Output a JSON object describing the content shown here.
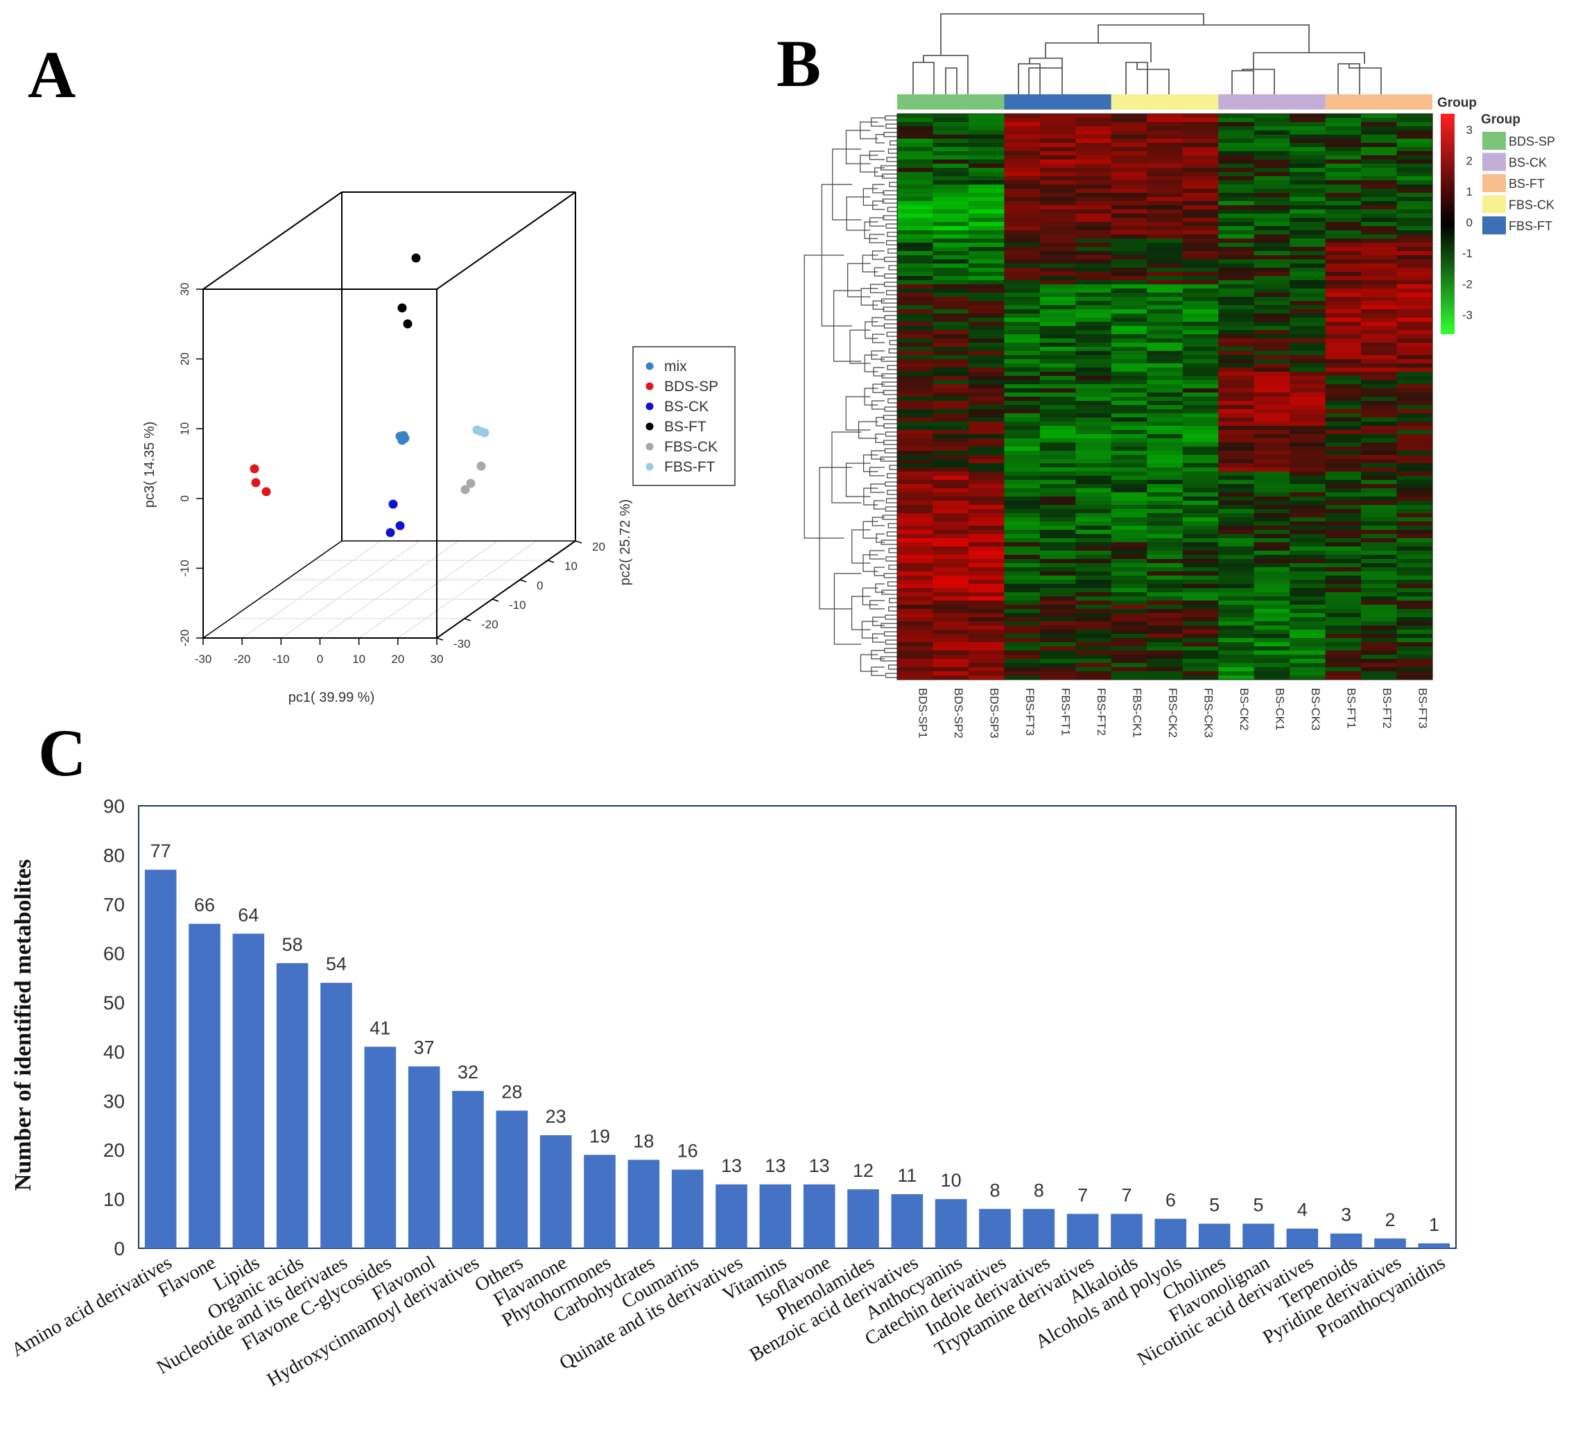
{
  "panels": {
    "a": "A",
    "b": "B",
    "c": "C"
  },
  "chart_data": [
    {
      "id": "pca3d",
      "type": "scatter",
      "title": "",
      "axes": {
        "x": {
          "label": "pc1( 39.99 %)",
          "ticks": [
            "-30",
            "-20",
            "-10",
            "0",
            "10",
            "20",
            "30"
          ],
          "range": [
            -30,
            30
          ]
        },
        "y": {
          "label": "pc2( 25.72 %)",
          "ticks": [
            "-30",
            "-20",
            "-10",
            "0",
            "10",
            "20"
          ],
          "range": [
            -30,
            20
          ]
        },
        "z": {
          "label": "pc3( 14.35 %)",
          "ticks": [
            "-20",
            "-10",
            "0",
            "10",
            "20",
            "30"
          ],
          "range": [
            -20,
            30
          ]
        }
      },
      "legend": [
        {
          "name": "mix",
          "color": "#3b82c4"
        },
        {
          "name": "BDS-SP",
          "color": "#e0141c"
        },
        {
          "name": "BS-CK",
          "color": "#1010d0"
        },
        {
          "name": "BS-FT",
          "color": "#000000"
        },
        {
          "name": "FBS-CK",
          "color": "#a8a8a8"
        },
        {
          "name": "FBS-FT",
          "color": "#9ccbe6"
        }
      ]
    },
    {
      "id": "heatmap",
      "type": "heatmap",
      "columns": [
        "BDS-SP1",
        "BDS-SP2",
        "BDS-SP3",
        "FBS-FT3",
        "FBS-FT1",
        "FBS-FT2",
        "FBS-CK1",
        "FBS-CK2",
        "FBS-CK3",
        "BS-CK2",
        "BS-CK1",
        "BS-CK3",
        "BS-FT1",
        "BS-FT2",
        "BS-FT3"
      ],
      "group_bar_label": "Group",
      "group_bar": [
        {
          "name": "BDS-SP",
          "color": "#7cc47a"
        },
        {
          "name": "FBS-FT",
          "color": "#3c6fb5"
        },
        {
          "name": "FBS-CK",
          "color": "#f6f291"
        },
        {
          "name": "BS-CK",
          "color": "#c2aed6"
        },
        {
          "name": "BS-FT",
          "color": "#f8be8c"
        }
      ],
      "legend_title": "Group",
      "legend": [
        {
          "name": "BDS-SP",
          "color": "#7cc47a"
        },
        {
          "name": "BS-CK",
          "color": "#c2aed6"
        },
        {
          "name": "BS-FT",
          "color": "#f8be8c"
        },
        {
          "name": "FBS-CK",
          "color": "#f6f291"
        },
        {
          "name": "FBS-FT",
          "color": "#3c6fb5"
        }
      ],
      "scale": {
        "min": -3,
        "max": 3,
        "labels": [
          "3",
          "2",
          "1",
          "0",
          "-1",
          "-2",
          "-3"
        ],
        "low_color": "#33ff33",
        "mid_color": "#000000",
        "high_color": "#ff2020"
      }
    },
    {
      "id": "bar",
      "type": "bar",
      "ylabel": "Number of identified metabolites",
      "xlabel": "",
      "ylim": [
        0,
        90
      ],
      "yticks": [
        "0",
        "10",
        "20",
        "30",
        "40",
        "50",
        "60",
        "70",
        "80",
        "90"
      ],
      "bar_color": "#4472c4",
      "categories": [
        "Amino acid derivatives",
        "Flavone",
        "Lipids",
        "Organic acids",
        "Nucleotide and its derivates",
        "Flavone C-glycosides",
        "Flavonol",
        "Hydroxycinnamoyl derivatives",
        "Others",
        "Flavanone",
        "Phytohormones",
        "Carbohydrates",
        "Coumarins",
        "Quinate and its derivatives",
        "Vitamins",
        "Isoflavone",
        "Phenolamides",
        "Benzoic acid derivatives",
        "Anthocyanins",
        "Catechin derivatives",
        "Indole derivatives",
        "Tryptamine derivatives",
        "Alkaloids",
        "Alcohols and polyols",
        "Cholines",
        "Flavonolignan",
        "Nicotinic acid derivatives",
        "Terpenoids",
        "Pyridine derivatives",
        "Proanthocyanidins"
      ],
      "values": [
        77,
        66,
        64,
        58,
        54,
        41,
        37,
        32,
        28,
        23,
        19,
        18,
        16,
        13,
        13,
        13,
        12,
        11,
        10,
        8,
        8,
        7,
        7,
        6,
        5,
        5,
        4,
        3,
        2,
        1
      ],
      "value_labels": [
        "77",
        "66",
        "64",
        "58",
        "54",
        "41",
        "37",
        "32",
        "28",
        "23",
        "19",
        "18",
        "16",
        "13",
        "13",
        "13",
        "12",
        "11",
        "10",
        "8",
        "8",
        "7",
        "7",
        "6",
        "5",
        "5",
        "4",
        "3",
        "2",
        "1"
      ]
    }
  ]
}
